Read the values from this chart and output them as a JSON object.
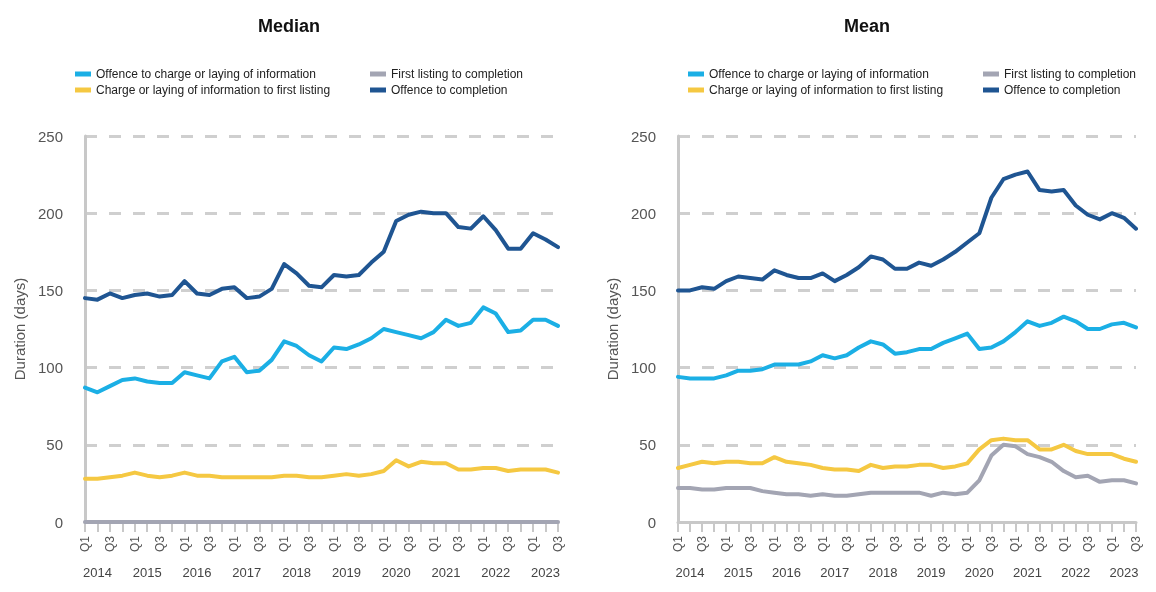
{
  "chart_data": [
    {
      "type": "line",
      "title": "Median",
      "ylabel": "Duration (days)",
      "legend": "top",
      "grid": "y",
      "marker": "none",
      "line_style": "solid",
      "ylim": [
        0,
        250
      ],
      "yticks": [
        0,
        50,
        100,
        150,
        200,
        250
      ],
      "categories": [
        "Q1",
        null,
        "Q3",
        null,
        "Q1",
        null,
        "Q3",
        null,
        "Q1",
        null,
        "Q3",
        null,
        "Q1",
        null,
        "Q3",
        null,
        "Q1",
        null,
        "Q3",
        null,
        "Q1",
        null,
        "Q3",
        null,
        "Q1",
        null,
        "Q3",
        null,
        "Q1",
        null,
        "Q3",
        null,
        "Q1",
        null,
        "Q3",
        null,
        "Q1",
        null,
        "Q3"
      ],
      "annotations": [
        "2014",
        "2015",
        "2016",
        "2017",
        "2018",
        "2019",
        "2020",
        "2021",
        "2022",
        "2023"
      ],
      "series": [
        {
          "name": "Offence to charge or laying of information",
          "color": "#1bafe5",
          "values": [
            87,
            84,
            88,
            92,
            93,
            91,
            90,
            90,
            97,
            95,
            93,
            104,
            107,
            97,
            98,
            105,
            117,
            114,
            108,
            104,
            113,
            112,
            115,
            119,
            125,
            123,
            121,
            119,
            123,
            131,
            127,
            129,
            139,
            135,
            123,
            124,
            131,
            131,
            127
          ]
        },
        {
          "name": "First listing to completion",
          "color": "#a3a5b3",
          "values": [
            0,
            0,
            0,
            0,
            0,
            0,
            0,
            0,
            0,
            0,
            0,
            0,
            0,
            0,
            0,
            0,
            0,
            0,
            0,
            0,
            0,
            0,
            0,
            0,
            0,
            0,
            0,
            0,
            0,
            0,
            0,
            0,
            0,
            0,
            0,
            0,
            0,
            0,
            0
          ]
        },
        {
          "name": "Charge or laying of information to first listing",
          "color": "#f5c842",
          "values": [
            28,
            28,
            29,
            30,
            32,
            30,
            29,
            30,
            32,
            30,
            30,
            29,
            29,
            29,
            29,
            29,
            30,
            30,
            29,
            29,
            30,
            31,
            30,
            31,
            33,
            40,
            36,
            39,
            38,
            38,
            34,
            34,
            35,
            35,
            33,
            34,
            34,
            34,
            32
          ]
        },
        {
          "name": "Offence to completion",
          "color": "#1f5592",
          "values": [
            145,
            144,
            148,
            145,
            147,
            148,
            146,
            147,
            156,
            148,
            147,
            151,
            152,
            145,
            146,
            151,
            167,
            161,
            153,
            152,
            160,
            159,
            160,
            168,
            175,
            195,
            199,
            201,
            200,
            200,
            191,
            190,
            198,
            189,
            177,
            177,
            187,
            183,
            178
          ]
        }
      ]
    },
    {
      "type": "line",
      "title": "Mean",
      "ylabel": "Duration (days)",
      "legend": "top",
      "grid": "y",
      "marker": "none",
      "line_style": "solid",
      "ylim": [
        0,
        250
      ],
      "yticks": [
        0,
        50,
        100,
        150,
        200,
        250
      ],
      "categories": [
        "Q1",
        null,
        "Q3",
        null,
        "Q1",
        null,
        "Q3",
        null,
        "Q1",
        null,
        "Q3",
        null,
        "Q1",
        null,
        "Q3",
        null,
        "Q1",
        null,
        "Q3",
        null,
        "Q1",
        null,
        "Q3",
        null,
        "Q1",
        null,
        "Q3",
        null,
        "Q1",
        null,
        "Q3",
        null,
        "Q1",
        null,
        "Q3",
        null,
        "Q1",
        null,
        "Q3"
      ],
      "annotations": [
        "2014",
        "2015",
        "2016",
        "2017",
        "2018",
        "2019",
        "2020",
        "2021",
        "2022",
        "2023"
      ],
      "series": [
        {
          "name": "Offence to charge or laying of information",
          "color": "#1bafe5",
          "values": [
            94,
            93,
            93,
            93,
            95,
            98,
            98,
            99,
            102,
            102,
            102,
            104,
            108,
            106,
            108,
            113,
            117,
            115,
            109,
            110,
            112,
            112,
            116,
            119,
            122,
            112,
            113,
            117,
            123,
            130,
            127,
            129,
            133,
            130,
            125,
            125,
            128,
            129,
            126
          ]
        },
        {
          "name": "First listing to completion",
          "color": "#a3a5b3",
          "values": [
            22,
            22,
            21,
            21,
            22,
            22,
            22,
            20,
            19,
            18,
            18,
            17,
            18,
            17,
            17,
            18,
            19,
            19,
            19,
            19,
            19,
            17,
            19,
            18,
            19,
            27,
            43,
            50,
            49,
            44,
            42,
            39,
            33,
            29,
            30,
            26,
            27,
            27,
            25
          ]
        },
        {
          "name": "Charge or laying of information to first listing",
          "color": "#f5c842",
          "values": [
            35,
            37,
            39,
            38,
            39,
            39,
            38,
            38,
            42,
            39,
            38,
            37,
            35,
            34,
            34,
            33,
            37,
            35,
            36,
            36,
            37,
            37,
            35,
            36,
            38,
            47,
            53,
            54,
            53,
            53,
            47,
            47,
            50,
            46,
            44,
            44,
            44,
            41,
            39
          ]
        },
        {
          "name": "Offence to completion",
          "color": "#1f5592",
          "values": [
            150,
            150,
            152,
            151,
            156,
            159,
            158,
            157,
            163,
            160,
            158,
            158,
            161,
            156,
            160,
            165,
            172,
            170,
            164,
            164,
            168,
            166,
            170,
            175,
            181,
            187,
            210,
            222,
            225,
            227,
            215,
            214,
            215,
            205,
            199,
            196,
            200,
            197,
            190
          ]
        }
      ]
    }
  ]
}
